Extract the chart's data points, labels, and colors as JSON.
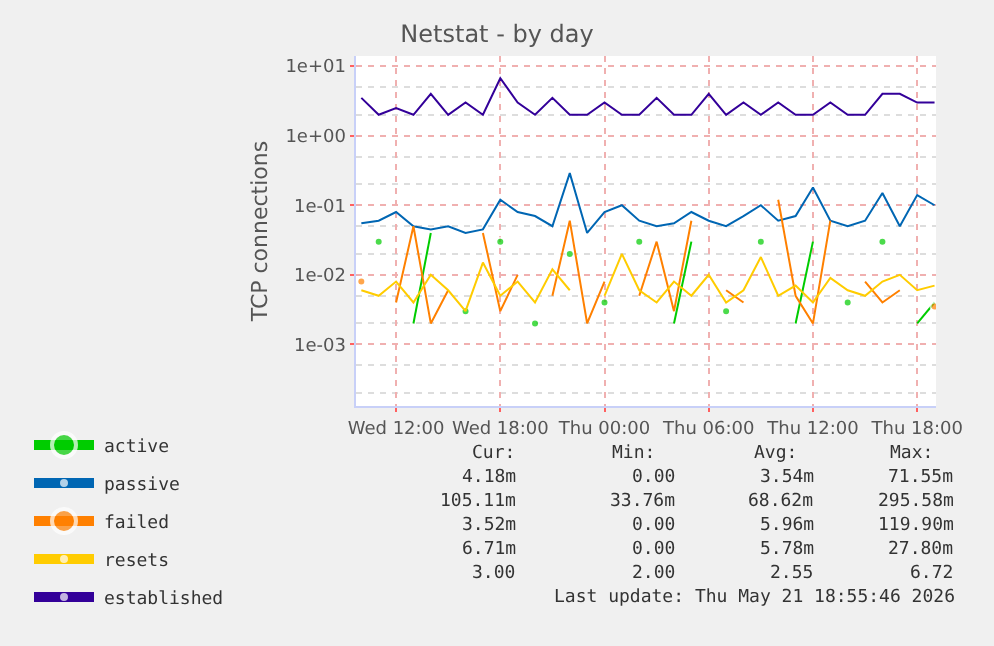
{
  "chart_data": {
    "type": "line",
    "title": "Netstat - by day",
    "ylabel": "TCP connections",
    "x": [
      "2026-05-20T10:00",
      "2026-05-20T11:00",
      "2026-05-20T12:00",
      "2026-05-20T13:00",
      "2026-05-20T14:00",
      "2026-05-20T15:00",
      "2026-05-20T16:00",
      "2026-05-20T17:00",
      "2026-05-20T18:00",
      "2026-05-20T19:00",
      "2026-05-20T20:00",
      "2026-05-20T21:00",
      "2026-05-20T22:00",
      "2026-05-20T23:00",
      "2026-05-21T00:00",
      "2026-05-21T01:00",
      "2026-05-21T02:00",
      "2026-05-21T03:00",
      "2026-05-21T04:00",
      "2026-05-21T05:00",
      "2026-05-21T06:00",
      "2026-05-21T07:00",
      "2026-05-21T08:00",
      "2026-05-21T09:00",
      "2026-05-21T10:00",
      "2026-05-21T11:00",
      "2026-05-21T12:00",
      "2026-05-21T13:00",
      "2026-05-21T14:00",
      "2026-05-21T15:00",
      "2026-05-21T16:00",
      "2026-05-21T17:00",
      "2026-05-21T18:00",
      "2026-05-21T19:00"
    ],
    "series": [
      {
        "name": "active",
        "color": "#00cc00",
        "values": [
          null,
          0.03,
          null,
          0.002,
          0.04,
          null,
          0.003,
          null,
          0.03,
          null,
          0.002,
          null,
          0.02,
          null,
          0.004,
          null,
          0.03,
          null,
          0.002,
          0.03,
          null,
          0.003,
          null,
          0.03,
          null,
          0.002,
          0.03,
          null,
          0.004,
          null,
          0.03,
          null,
          0.002,
          0.004
        ]
      },
      {
        "name": "passive",
        "color": "#0066b3",
        "values": [
          0.055,
          0.06,
          0.08,
          0.05,
          0.045,
          0.05,
          0.04,
          0.045,
          0.12,
          0.08,
          0.07,
          0.05,
          0.29,
          0.04,
          0.08,
          0.1,
          0.06,
          0.05,
          0.055,
          0.08,
          0.06,
          0.05,
          0.07,
          0.1,
          0.06,
          0.07,
          0.18,
          0.06,
          0.05,
          0.06,
          0.15,
          0.05,
          0.14,
          0.1
        ]
      },
      {
        "name": "failed",
        "color": "#ff8000",
        "values": [
          0.008,
          null,
          0.004,
          0.05,
          0.002,
          0.006,
          null,
          0.04,
          0.003,
          0.01,
          null,
          0.005,
          0.06,
          0.002,
          0.008,
          null,
          0.005,
          0.03,
          0.003,
          0.06,
          null,
          0.006,
          0.004,
          null,
          0.12,
          0.005,
          0.002,
          0.06,
          null,
          0.008,
          0.004,
          0.006,
          null,
          0.0035
        ]
      },
      {
        "name": "resets",
        "color": "#ffcc00",
        "values": [
          0.006,
          0.005,
          0.008,
          0.004,
          0.01,
          0.006,
          0.003,
          0.015,
          0.005,
          0.008,
          0.004,
          0.012,
          0.006,
          null,
          0.005,
          0.02,
          0.006,
          0.004,
          0.008,
          0.005,
          0.01,
          0.004,
          0.006,
          0.018,
          0.005,
          0.007,
          0.004,
          0.009,
          0.006,
          0.005,
          0.008,
          0.01,
          0.006,
          0.007
        ]
      },
      {
        "name": "established",
        "color": "#330099",
        "values": [
          3.5,
          2,
          2.5,
          2,
          4,
          2,
          3,
          2,
          6.7,
          3,
          2,
          3.5,
          2,
          2,
          3,
          2,
          2,
          3.5,
          2,
          2,
          4,
          2,
          3,
          2,
          3,
          2,
          2,
          3,
          2,
          2,
          4,
          4,
          3,
          3
        ]
      }
    ],
    "log": "y",
    "grid": true,
    "legend": "bottom",
    "xlim": [
      "2026-05-20T09:40",
      "2026-05-21T19:05"
    ],
    "xticks": [
      {
        "value": "2026-05-20T12:00",
        "label": "Wed 12:00"
      },
      {
        "value": "2026-05-20T18:00",
        "label": "Wed 18:00"
      },
      {
        "value": "2026-05-21T00:00",
        "label": "Thu 00:00"
      },
      {
        "value": "2026-05-21T06:00",
        "label": "Thu 06:00"
      },
      {
        "value": "2026-05-21T12:00",
        "label": "Thu 12:00"
      },
      {
        "value": "2026-05-21T18:00",
        "label": "Thu 18:00"
      }
    ],
    "ylim": [
      0.00013,
      14
    ],
    "yticks": [
      {
        "value": 0.001,
        "label": "1e-03"
      },
      {
        "value": 0.01,
        "label": "1e-02"
      },
      {
        "value": 0.1,
        "label": "1e-01"
      },
      {
        "value": 1,
        "label": "1e+00"
      },
      {
        "value": 10,
        "label": "1e+01"
      }
    ],
    "annotations": [
      "Cur:",
      "Min:",
      "Avg:",
      "Max:",
      "4.18m",
      "0.00",
      "3.54m",
      "71.55m",
      "105.11m",
      "33.76m",
      "68.62m",
      "295.58m",
      "3.52m",
      "0.00",
      "5.96m",
      "119.90m",
      "6.71m",
      "0.00",
      "5.78m",
      "27.80m",
      "3.00",
      "2.00",
      "2.55",
      "6.72",
      "Last update: Thu May 21 18:55:46 2026"
    ]
  }
}
